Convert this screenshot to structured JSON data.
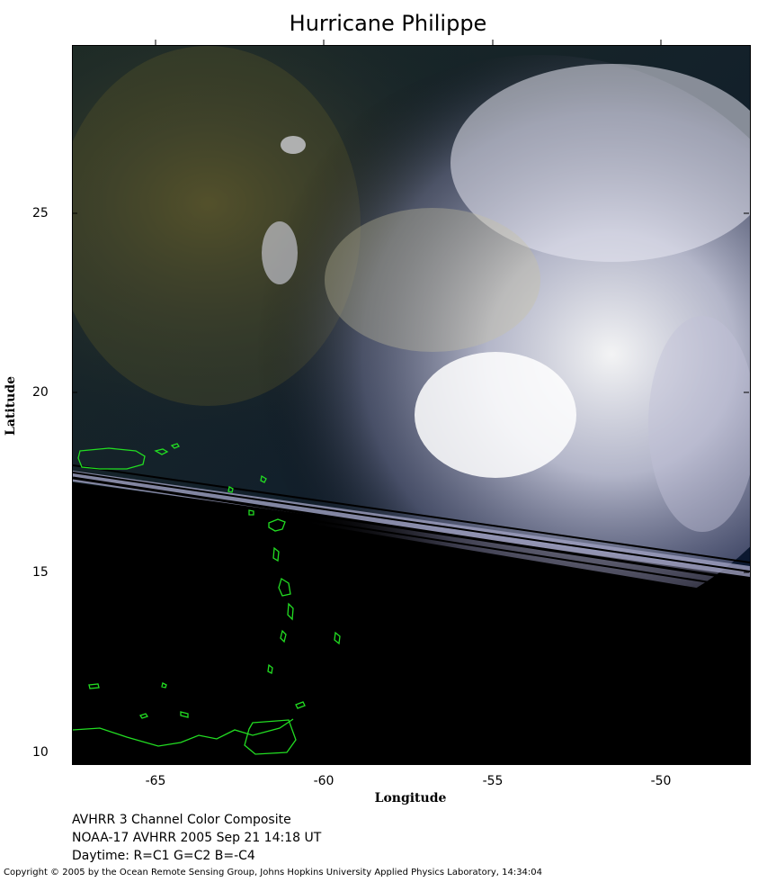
{
  "title": "Hurricane Philippe",
  "axes": {
    "xlabel": "Longitude",
    "ylabel": "Latitude",
    "x_ticks": [
      "-65",
      "-60",
      "-55",
      "-50"
    ],
    "y_ticks": [
      "25",
      "20",
      "15",
      "10"
    ]
  },
  "caption": {
    "line1": "AVHRR 3 Channel Color Composite",
    "line2": "NOAA-17 AVHRR 2005 Sep 21 14:18 UT",
    "line3": "Daytime: R=C1 G=C2 B=-C4"
  },
  "copyright": "Copyright © 2005 by the Ocean Remote Sensing Group, Johns Hopkins University Applied Physics Laboratory, 14:34:04",
  "colors": {
    "coastline": "#22dd22",
    "ocean": "#0a1a2e",
    "cloud": "#f4f4f8",
    "swath_gap": "#000000"
  }
}
